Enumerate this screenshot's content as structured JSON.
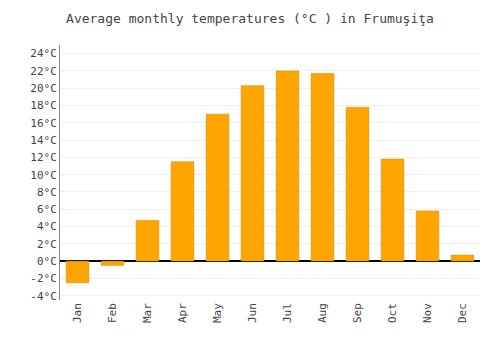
{
  "chart_data": {
    "type": "bar",
    "title": "Average monthly temperatures (°C ) in Frumuşiţa",
    "categories": [
      "Jan",
      "Feb",
      "Mar",
      "Apr",
      "May",
      "Jun",
      "Jul",
      "Aug",
      "Sep",
      "Oct",
      "Nov",
      "Dec"
    ],
    "values": [
      -2.5,
      -0.5,
      4.7,
      11.5,
      17.0,
      20.3,
      22.0,
      21.7,
      17.8,
      11.8,
      5.8,
      0.7
    ],
    "color": "#FFA500",
    "ylim": [
      -4.5,
      25
    ],
    "yticks": [
      {
        "value": -4,
        "label": "-4°C"
      },
      {
        "value": -2,
        "label": "-2°C"
      },
      {
        "value": 0,
        "label": "0°C"
      },
      {
        "value": 2,
        "label": "2°C"
      },
      {
        "value": 4,
        "label": "4°C"
      },
      {
        "value": 6,
        "label": "6°C"
      },
      {
        "value": 8,
        "label": "8°C"
      },
      {
        "value": 10,
        "label": "10°C"
      },
      {
        "value": 12,
        "label": "12°C"
      },
      {
        "value": 14,
        "label": "14°C"
      },
      {
        "value": 16,
        "label": "16°C"
      },
      {
        "value": 18,
        "label": "18°C"
      },
      {
        "value": 20,
        "label": "20°C"
      },
      {
        "value": 22,
        "label": "22°C"
      },
      {
        "value": 24,
        "label": "24°C"
      }
    ],
    "grid": true
  }
}
